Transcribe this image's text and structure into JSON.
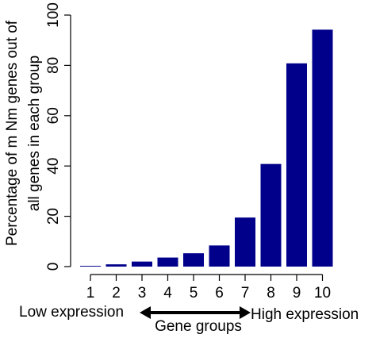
{
  "chart_data": {
    "type": "bar",
    "categories": [
      "1",
      "2",
      "3",
      "4",
      "5",
      "6",
      "7",
      "8",
      "9",
      "10"
    ],
    "values": [
      0.3,
      0.9,
      2.0,
      3.6,
      5.3,
      8.4,
      19.5,
      40.8,
      80.8,
      94.2
    ],
    "bar_color": "#00008B",
    "ylabel_line1": "Percentage of m Nm genes out of",
    "ylabel_line2": "all genes in each group",
    "xlabel": "Gene groups",
    "ylim": [
      0,
      100
    ],
    "yticks": [
      "0",
      "20",
      "40",
      "60",
      "80",
      "100"
    ],
    "annotations": {
      "low": "Low expression",
      "high": "High expression"
    }
  }
}
